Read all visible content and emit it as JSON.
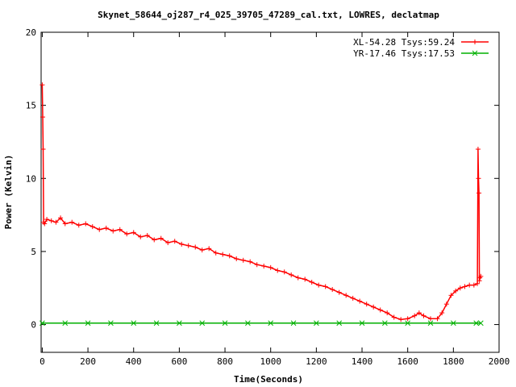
{
  "chart_data": {
    "type": "line",
    "title": "Skynet_58644_oj287_r4_025_39705_47289_cal.txt, LOWRES, declatmap",
    "xlabel": "Time(Seconds)",
    "ylabel": "Power (Kelvin)",
    "xlim": [
      -5,
      2000
    ],
    "ylim": [
      -1.9,
      20
    ],
    "xticks": [
      0,
      200,
      400,
      600,
      800,
      1000,
      1200,
      1400,
      1600,
      1800,
      2000
    ],
    "yticks": [
      0,
      5,
      10,
      15,
      20
    ],
    "grid": false,
    "legend_position": "top-right",
    "series": [
      {
        "name": "XL-54.28 Tsys:59.24",
        "color": "#ff0000",
        "marker": "plus",
        "x": [
          0,
          2,
          4,
          6,
          10,
          20,
          40,
          60,
          80,
          100,
          130,
          160,
          190,
          220,
          250,
          280,
          310,
          340,
          370,
          400,
          430,
          460,
          490,
          520,
          550,
          580,
          610,
          640,
          670,
          700,
          730,
          760,
          790,
          820,
          850,
          880,
          910,
          940,
          970,
          1000,
          1030,
          1060,
          1090,
          1120,
          1150,
          1180,
          1210,
          1240,
          1270,
          1300,
          1330,
          1360,
          1390,
          1420,
          1450,
          1480,
          1510,
          1540,
          1570,
          1600,
          1630,
          1650,
          1670,
          1700,
          1730,
          1750,
          1770,
          1790,
          1810,
          1830,
          1850,
          1870,
          1890,
          1905,
          1908,
          1910,
          1912,
          1914,
          1916,
          1920
        ],
        "y": [
          16.4,
          14.2,
          12.0,
          7.0,
          6.9,
          7.2,
          7.1,
          7.0,
          7.3,
          6.9,
          7.0,
          6.8,
          6.9,
          6.7,
          6.5,
          6.6,
          6.4,
          6.5,
          6.2,
          6.3,
          6.0,
          6.1,
          5.8,
          5.9,
          5.6,
          5.7,
          5.5,
          5.4,
          5.3,
          5.1,
          5.2,
          4.9,
          4.8,
          4.7,
          4.5,
          4.4,
          4.3,
          4.1,
          4.0,
          3.9,
          3.7,
          3.6,
          3.4,
          3.2,
          3.1,
          2.9,
          2.7,
          2.6,
          2.4,
          2.2,
          2.0,
          1.8,
          1.6,
          1.4,
          1.2,
          1.0,
          0.8,
          0.5,
          0.35,
          0.4,
          0.6,
          0.8,
          0.6,
          0.4,
          0.4,
          0.8,
          1.4,
          2.0,
          2.3,
          2.5,
          2.6,
          2.7,
          2.7,
          2.8,
          12.0,
          10.0,
          9.0,
          3.0,
          3.2,
          3.3
        ]
      },
      {
        "name": "YR-17.46 Tsys:17.53",
        "color": "#00b000",
        "marker": "x",
        "x": [
          0,
          100,
          200,
          300,
          400,
          500,
          600,
          700,
          800,
          900,
          1000,
          1100,
          1200,
          1300,
          1400,
          1500,
          1600,
          1700,
          1800,
          1900,
          1920
        ],
        "y": [
          0.1,
          0.1,
          0.1,
          0.1,
          0.1,
          0.1,
          0.1,
          0.1,
          0.1,
          0.1,
          0.1,
          0.1,
          0.1,
          0.1,
          0.1,
          0.1,
          0.1,
          0.1,
          0.1,
          0.1,
          0.1
        ]
      }
    ]
  }
}
